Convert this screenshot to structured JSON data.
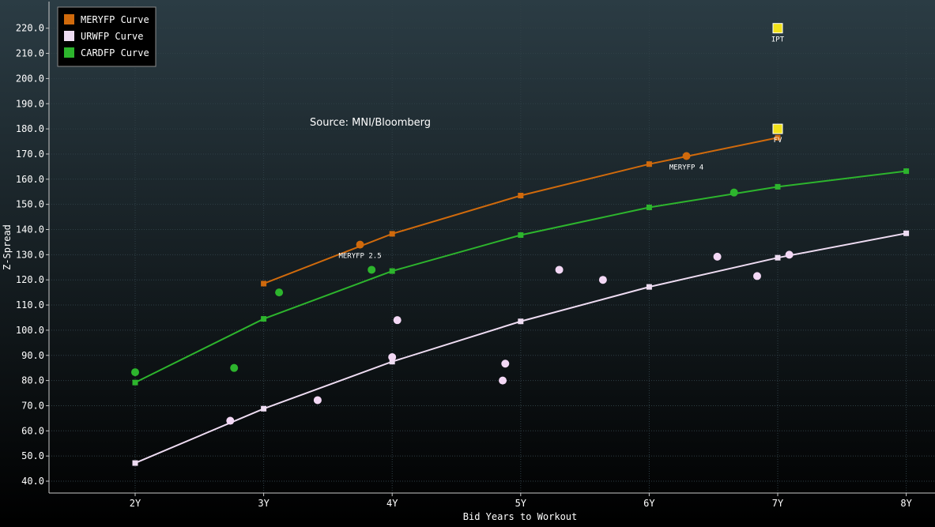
{
  "chart_data": {
    "type": "scatter",
    "title": "",
    "xlabel": "Bid Years to Workout",
    "ylabel": "Z-Spread",
    "xlim": [
      1.4,
      8.2
    ],
    "ylim": [
      36,
      227
    ],
    "x_ticks": [
      2,
      3,
      4,
      5,
      6,
      7,
      8
    ],
    "x_tick_labels": [
      "2Y",
      "3Y",
      "4Y",
      "5Y",
      "6Y",
      "7Y",
      "8Y"
    ],
    "y_ticks": [
      40,
      50,
      60,
      70,
      80,
      90,
      100,
      110,
      120,
      130,
      140,
      150,
      160,
      170,
      180,
      190,
      200,
      210,
      220
    ],
    "y_tick_labels": [
      "40.0",
      "50.0",
      "60.0",
      "70.0",
      "80.0",
      "90.0",
      "100.0",
      "110.0",
      "120.0",
      "130.0",
      "140.0",
      "150.0",
      "160.0",
      "170.0",
      "180.0",
      "190.0",
      "200.0",
      "210.0",
      "220.0"
    ],
    "grid": true,
    "legend_position": "top-left",
    "background": {
      "top": "#2b3c44",
      "bottom": "#000000"
    },
    "source_note": "Source: MNI/Bloomberg",
    "curves": [
      {
        "name": "MERYFP Curve",
        "color": "#d06a0c",
        "x": [
          3,
          4,
          5,
          6,
          7
        ],
        "y": [
          118.5,
          138.3,
          153.5,
          166.0,
          176.5
        ]
      },
      {
        "name": "URWFP Curve",
        "color": "#eedcf2",
        "x": [
          2,
          3,
          4,
          5,
          6,
          7,
          8
        ],
        "y": [
          47.2,
          68.8,
          87.5,
          103.5,
          117.2,
          128.8,
          138.5
        ]
      },
      {
        "name": "CARDFP Curve",
        "color": "#2db52d",
        "x": [
          2,
          3,
          4,
          5,
          6,
          7,
          8
        ],
        "y": [
          79.2,
          104.5,
          123.5,
          137.8,
          148.8,
          157.0,
          163.2
        ]
      }
    ],
    "bond_points": [
      {
        "series": "MERYFP",
        "color": "#d06a0c",
        "points": [
          [
            3.75,
            134.0
          ],
          [
            6.29,
            169.2
          ]
        ]
      },
      {
        "series": "URWFP",
        "color": "#f3d8f5",
        "points": [
          [
            2.74,
            64.0
          ],
          [
            3.42,
            72.2
          ],
          [
            4.0,
            89.3
          ],
          [
            4.04,
            104.0
          ],
          [
            4.86,
            80.0
          ],
          [
            4.88,
            86.7
          ],
          [
            5.3,
            124.0
          ],
          [
            5.64,
            120.0
          ],
          [
            6.53,
            129.2
          ],
          [
            6.84,
            121.5
          ],
          [
            7.09,
            130.0
          ]
        ]
      },
      {
        "series": "CARDFP",
        "color": "#2db52d",
        "points": [
          [
            2.0,
            83.3
          ],
          [
            2.77,
            85.0
          ],
          [
            3.12,
            115.0
          ],
          [
            3.84,
            124.0
          ],
          [
            6.66,
            154.7
          ]
        ]
      }
    ],
    "markers": [
      {
        "label": "IPT",
        "x": 7.0,
        "y": 220.0,
        "color": "#f2e21a"
      },
      {
        "label": "FV",
        "x": 7.0,
        "y": 180.0,
        "color": "#f2e21a"
      }
    ],
    "point_labels": [
      {
        "text": "MERYFP 2.5",
        "x": 3.75,
        "y": 134.0
      },
      {
        "text": "MERYFP 4",
        "x": 6.29,
        "y": 169.2
      }
    ]
  }
}
